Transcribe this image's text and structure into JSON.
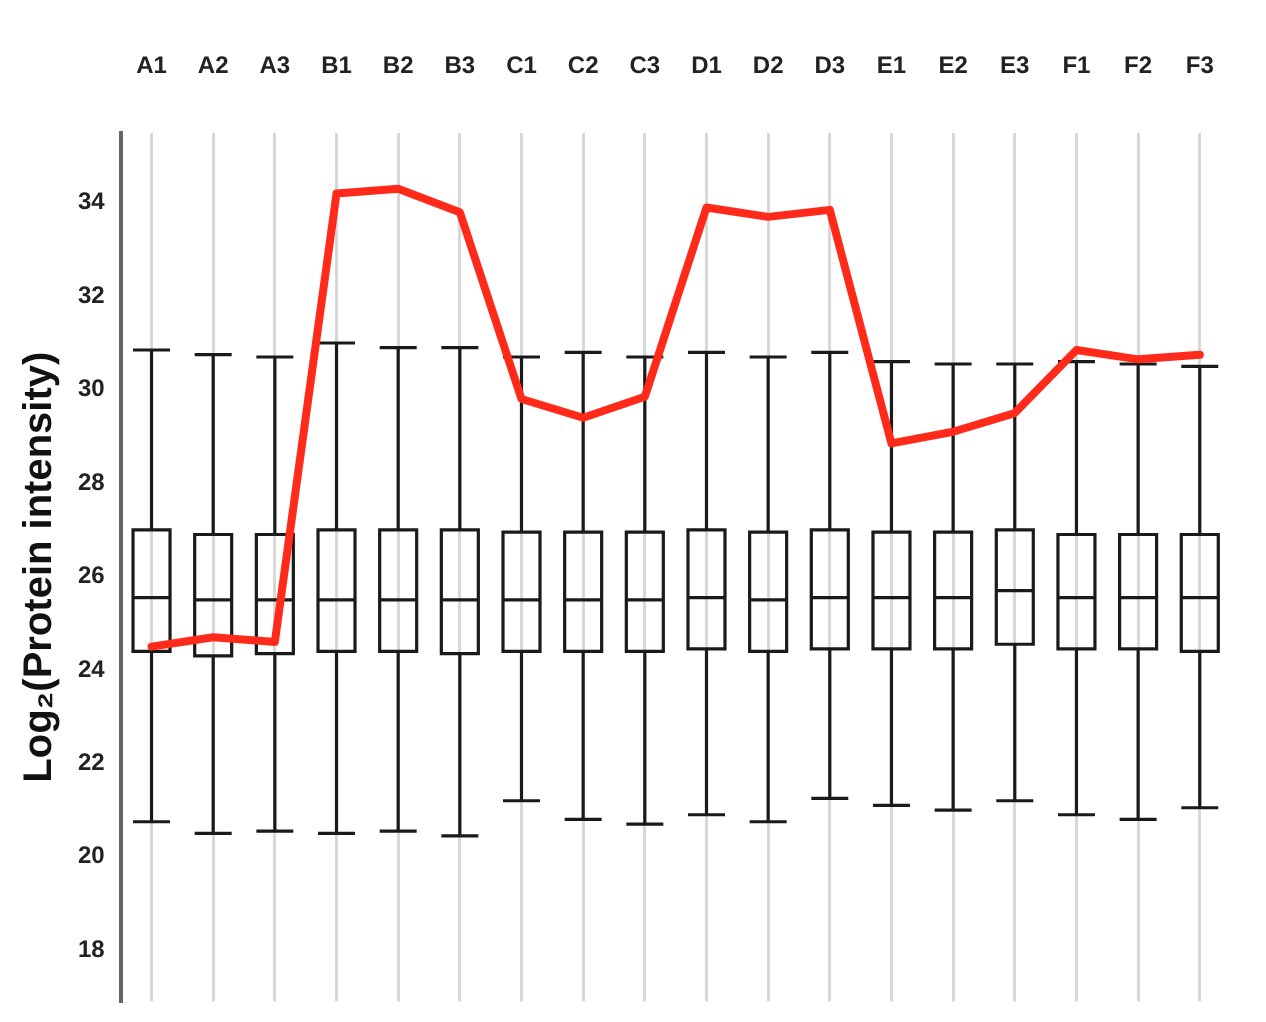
{
  "chart_data": {
    "type": "box",
    "ylabel": "Log₂(Protein intensity)",
    "categories": [
      "A1",
      "A2",
      "A3",
      "B1",
      "B2",
      "B3",
      "C1",
      "C2",
      "C3",
      "D1",
      "D2",
      "D3",
      "E1",
      "E2",
      "E3",
      "F1",
      "F2",
      "F3"
    ],
    "boxes": [
      {
        "low": 20.75,
        "q1": 24.4,
        "median": 25.55,
        "q3": 27.0,
        "high": 30.85
      },
      {
        "low": 20.5,
        "q1": 24.3,
        "median": 25.5,
        "q3": 26.9,
        "high": 30.75
      },
      {
        "low": 20.55,
        "q1": 24.35,
        "median": 25.5,
        "q3": 26.9,
        "high": 30.7
      },
      {
        "low": 20.5,
        "q1": 24.4,
        "median": 25.5,
        "q3": 27.0,
        "high": 31.0
      },
      {
        "low": 20.55,
        "q1": 24.4,
        "median": 25.5,
        "q3": 27.0,
        "high": 30.9
      },
      {
        "low": 20.45,
        "q1": 24.35,
        "median": 25.5,
        "q3": 27.0,
        "high": 30.9
      },
      {
        "low": 21.2,
        "q1": 24.4,
        "median": 25.5,
        "q3": 26.95,
        "high": 30.7
      },
      {
        "low": 20.8,
        "q1": 24.4,
        "median": 25.5,
        "q3": 26.95,
        "high": 30.8
      },
      {
        "low": 20.7,
        "q1": 24.4,
        "median": 25.5,
        "q3": 26.95,
        "high": 30.7
      },
      {
        "low": 20.9,
        "q1": 24.45,
        "median": 25.55,
        "q3": 27.0,
        "high": 30.8
      },
      {
        "low": 20.75,
        "q1": 24.4,
        "median": 25.5,
        "q3": 26.95,
        "high": 30.7
      },
      {
        "low": 21.25,
        "q1": 24.45,
        "median": 25.55,
        "q3": 27.0,
        "high": 30.8
      },
      {
        "low": 21.1,
        "q1": 24.45,
        "median": 25.55,
        "q3": 26.95,
        "high": 30.6
      },
      {
        "low": 21.0,
        "q1": 24.45,
        "median": 25.55,
        "q3": 26.95,
        "high": 30.55
      },
      {
        "low": 21.2,
        "q1": 24.55,
        "median": 25.7,
        "q3": 27.0,
        "high": 30.55
      },
      {
        "low": 20.9,
        "q1": 24.45,
        "median": 25.55,
        "q3": 26.9,
        "high": 30.6
      },
      {
        "low": 20.8,
        "q1": 24.45,
        "median": 25.55,
        "q3": 26.9,
        "high": 30.55
      },
      {
        "low": 21.05,
        "q1": 24.4,
        "median": 25.55,
        "q3": 26.9,
        "high": 30.5
      }
    ],
    "series": [
      {
        "type": "line",
        "color": "#ff2a1a",
        "values": [
          24.5,
          24.7,
          24.6,
          34.2,
          34.3,
          33.8,
          29.8,
          29.4,
          29.85,
          33.9,
          33.7,
          33.85,
          28.85,
          29.1,
          29.5,
          30.85,
          30.65,
          30.75
        ]
      }
    ],
    "ylim": [
      16.9,
      35.5
    ],
    "yticks": [
      18,
      20,
      22,
      24,
      26,
      28,
      30,
      32,
      34
    ],
    "grid": "x",
    "legend": false,
    "marker": "none",
    "line_style": "solid"
  }
}
